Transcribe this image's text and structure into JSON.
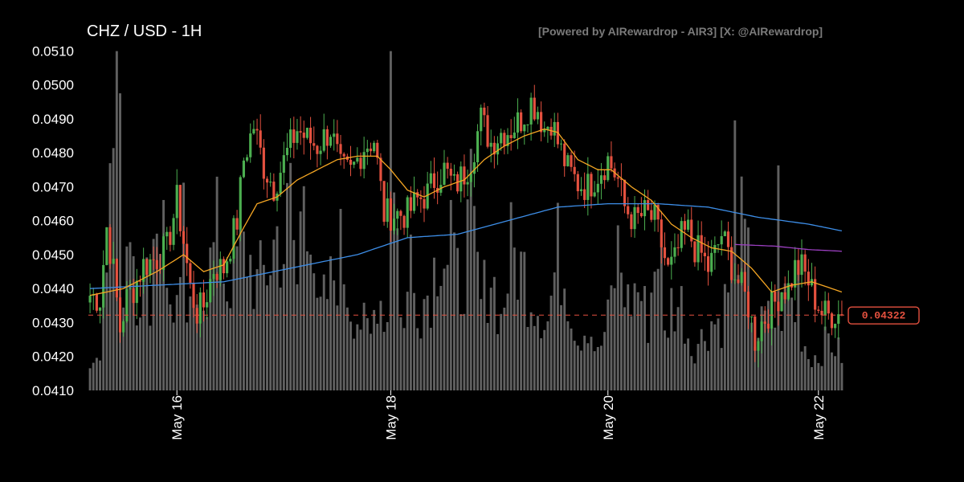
{
  "header": {
    "title": "CHZ / USD - 1H",
    "credit": "[Powered by AIRewardrop - AIR3] [X: @AIRewardrop]"
  },
  "colors": {
    "background": "#000000",
    "up": "#4caf50",
    "down": "#e4513f",
    "volume": "#808080",
    "ma_fast": "#f5a623",
    "ma_slow": "#3d8ee8",
    "ma_long": "#9b3fc0",
    "price_line": "#e4513f"
  },
  "chart_data": {
    "type": "candlestick",
    "interval": "1H",
    "ylim": [
      0.041,
      0.0512
    ],
    "y_ticks": [
      "0.0410",
      "0.0420",
      "0.0430",
      "0.0440",
      "0.0450",
      "0.0460",
      "0.0470",
      "0.0480",
      "0.0490",
      "0.0500",
      "0.0510"
    ],
    "x_ticks": [
      {
        "label": "May 16",
        "index": 26
      },
      {
        "label": "May 18",
        "index": 90
      },
      {
        "label": "May 20",
        "index": 155
      },
      {
        "label": "May 22",
        "index": 218
      }
    ],
    "last_price": 0.04322,
    "last_price_label": "0.04322",
    "price_anchors": [
      [
        0,
        0.0438
      ],
      [
        3,
        0.0437
      ],
      [
        5,
        0.0458
      ],
      [
        7,
        0.0445
      ],
      [
        9,
        0.0428
      ],
      [
        11,
        0.0437
      ],
      [
        13,
        0.044
      ],
      [
        16,
        0.0447
      ],
      [
        20,
        0.0449
      ],
      [
        23,
        0.0452
      ],
      [
        26,
        0.0466
      ],
      [
        28,
        0.0454
      ],
      [
        30,
        0.044
      ],
      [
        32,
        0.0433
      ],
      [
        34,
        0.0435
      ],
      [
        37,
        0.0446
      ],
      [
        40,
        0.0446
      ],
      [
        44,
        0.046
      ],
      [
        46,
        0.0478
      ],
      [
        49,
        0.0488
      ],
      [
        52,
        0.0476
      ],
      [
        55,
        0.047
      ],
      [
        59,
        0.048
      ],
      [
        62,
        0.0487
      ],
      [
        65,
        0.0484
      ],
      [
        68,
        0.0482
      ],
      [
        72,
        0.0487
      ],
      [
        75,
        0.0475
      ],
      [
        78,
        0.0474
      ],
      [
        82,
        0.0482
      ],
      [
        85,
        0.0484
      ],
      [
        88,
        0.0462
      ],
      [
        92,
        0.0462
      ],
      [
        95,
        0.0462
      ],
      [
        98,
        0.0466
      ],
      [
        101,
        0.0468
      ],
      [
        103,
        0.0472
      ],
      [
        106,
        0.0475
      ],
      [
        109,
        0.047
      ],
      [
        112,
        0.0474
      ],
      [
        114,
        0.0478
      ],
      [
        117,
        0.049
      ],
      [
        120,
        0.0483
      ],
      [
        123,
        0.0486
      ],
      [
        126,
        0.0487
      ],
      [
        129,
        0.049
      ],
      [
        132,
        0.0495
      ],
      [
        134,
        0.0493
      ],
      [
        136,
        0.0487
      ],
      [
        138,
        0.049
      ],
      [
        140,
        0.0483
      ],
      [
        143,
        0.0475
      ],
      [
        146,
        0.0471
      ],
      [
        149,
        0.047
      ],
      [
        152,
        0.0474
      ],
      [
        155,
        0.0478
      ],
      [
        158,
        0.0472
      ],
      [
        160,
        0.0464
      ],
      [
        163,
        0.046
      ],
      [
        166,
        0.0462
      ],
      [
        169,
        0.046
      ],
      [
        171,
        0.0453
      ],
      [
        173,
        0.0445
      ],
      [
        175,
        0.0448
      ],
      [
        177,
        0.0455
      ],
      [
        179,
        0.0457
      ],
      [
        181,
        0.0452
      ],
      [
        183,
        0.045
      ],
      [
        185,
        0.0446
      ],
      [
        187,
        0.045
      ],
      [
        189,
        0.0456
      ],
      [
        191,
        0.045
      ],
      [
        193,
        0.0444
      ],
      [
        195,
        0.044
      ],
      [
        197,
        0.0435
      ],
      [
        199,
        0.0425
      ],
      [
        201,
        0.043
      ],
      [
        203,
        0.0433
      ],
      [
        205,
        0.0436
      ],
      [
        207,
        0.044
      ],
      [
        209,
        0.044
      ],
      [
        211,
        0.0446
      ],
      [
        213,
        0.0446
      ],
      [
        215,
        0.0442
      ],
      [
        217,
        0.0437
      ],
      [
        219,
        0.0433
      ],
      [
        221,
        0.0432
      ],
      [
        223,
        0.0433
      ],
      [
        225,
        0.04322
      ]
    ],
    "volume_anchors": [
      [
        0,
        0.08
      ],
      [
        3,
        0.1
      ],
      [
        4,
        0.5
      ],
      [
        6,
        0.55
      ],
      [
        8,
        0.95
      ],
      [
        10,
        0.35
      ],
      [
        12,
        0.55
      ],
      [
        14,
        0.3
      ],
      [
        18,
        0.3
      ],
      [
        20,
        0.55
      ],
      [
        23,
        0.25
      ],
      [
        27,
        0.25
      ],
      [
        30,
        0.2
      ],
      [
        33,
        0.3
      ],
      [
        35,
        0.3
      ],
      [
        38,
        0.45
      ],
      [
        41,
        0.3
      ],
      [
        44,
        0.38
      ],
      [
        47,
        0.4
      ],
      [
        50,
        0.3
      ],
      [
        53,
        0.35
      ],
      [
        56,
        0.45
      ],
      [
        58,
        0.4
      ],
      [
        60,
        0.55
      ],
      [
        62,
        0.3
      ],
      [
        64,
        0.65
      ],
      [
        66,
        0.55
      ],
      [
        68,
        0.2
      ],
      [
        70,
        0.25
      ],
      [
        72,
        0.3
      ],
      [
        75,
        0.4
      ],
      [
        78,
        0.25
      ],
      [
        81,
        0.2
      ],
      [
        84,
        0.15
      ],
      [
        86,
        0.3
      ],
      [
        89,
        0.2
      ],
      [
        90,
        0.98
      ],
      [
        93,
        0.2
      ],
      [
        96,
        0.3
      ],
      [
        99,
        0.25
      ],
      [
        102,
        0.3
      ],
      [
        105,
        0.45
      ],
      [
        108,
        0.35
      ],
      [
        111,
        0.3
      ],
      [
        114,
        0.5
      ],
      [
        117,
        0.25
      ],
      [
        120,
        0.35
      ],
      [
        123,
        0.2
      ],
      [
        126,
        0.4
      ],
      [
        129,
        0.35
      ],
      [
        131,
        0.3
      ],
      [
        134,
        0.25
      ],
      [
        137,
        0.2
      ],
      [
        140,
        0.4
      ],
      [
        143,
        0.3
      ],
      [
        146,
        0.15
      ],
      [
        149,
        0.2
      ],
      [
        152,
        0.1
      ],
      [
        155,
        0.2
      ],
      [
        158,
        0.4
      ],
      [
        161,
        0.25
      ],
      [
        164,
        0.3
      ],
      [
        167,
        0.2
      ],
      [
        170,
        0.45
      ],
      [
        172,
        0.15
      ],
      [
        174,
        0.25
      ],
      [
        177,
        0.25
      ],
      [
        180,
        0.12
      ],
      [
        183,
        0.15
      ],
      [
        186,
        0.2
      ],
      [
        189,
        0.2
      ],
      [
        192,
        0.35
      ],
      [
        194,
        0.5
      ],
      [
        197,
        0.35
      ],
      [
        199,
        0.15
      ],
      [
        202,
        0.2
      ],
      [
        205,
        0.2
      ],
      [
        208,
        0.25
      ],
      [
        210,
        0.25
      ],
      [
        212,
        0.2
      ],
      [
        215,
        0.1
      ],
      [
        218,
        0.1
      ],
      [
        221,
        0.15
      ],
      [
        225,
        0.1
      ]
    ],
    "volume_spikes": [
      [
        7,
        0.7
      ],
      [
        22,
        0.55
      ],
      [
        28,
        0.6
      ],
      [
        90,
        0.98
      ],
      [
        96,
        0.45
      ],
      [
        108,
        0.55
      ],
      [
        130,
        0.4
      ],
      [
        171,
        0.45
      ],
      [
        193,
        0.78
      ],
      [
        206,
        0.65
      ],
      [
        212,
        0.35
      ]
    ],
    "ma_fast_anchors": [
      [
        0,
        0.0438
      ],
      [
        10,
        0.044
      ],
      [
        20,
        0.0445
      ],
      [
        28,
        0.045
      ],
      [
        34,
        0.0445
      ],
      [
        40,
        0.0447
      ],
      [
        46,
        0.0458
      ],
      [
        50,
        0.0465
      ],
      [
        56,
        0.0467
      ],
      [
        62,
        0.0472
      ],
      [
        68,
        0.0475
      ],
      [
        74,
        0.0478
      ],
      [
        80,
        0.0479
      ],
      [
        86,
        0.0479
      ],
      [
        90,
        0.0475
      ],
      [
        95,
        0.0469
      ],
      [
        100,
        0.0467
      ],
      [
        106,
        0.047
      ],
      [
        112,
        0.0472
      ],
      [
        118,
        0.0478
      ],
      [
        124,
        0.0482
      ],
      [
        130,
        0.0485
      ],
      [
        136,
        0.0487
      ],
      [
        140,
        0.0486
      ],
      [
        146,
        0.0478
      ],
      [
        152,
        0.0475
      ],
      [
        156,
        0.0475
      ],
      [
        162,
        0.047
      ],
      [
        168,
        0.0466
      ],
      [
        174,
        0.0459
      ],
      [
        180,
        0.0455
      ],
      [
        186,
        0.0452
      ],
      [
        192,
        0.0451
      ],
      [
        198,
        0.0446
      ],
      [
        204,
        0.0439
      ],
      [
        210,
        0.0441
      ],
      [
        216,
        0.0442
      ],
      [
        222,
        0.044
      ],
      [
        225,
        0.0439
      ]
    ],
    "ma_slow_anchors": [
      [
        0,
        0.044
      ],
      [
        20,
        0.0441
      ],
      [
        40,
        0.0442
      ],
      [
        60,
        0.0446
      ],
      [
        80,
        0.045
      ],
      [
        95,
        0.0455
      ],
      [
        110,
        0.0456
      ],
      [
        125,
        0.046
      ],
      [
        140,
        0.0464
      ],
      [
        155,
        0.0465
      ],
      [
        170,
        0.0465
      ],
      [
        185,
        0.0464
      ],
      [
        200,
        0.0461
      ],
      [
        215,
        0.0459
      ],
      [
        225,
        0.0457
      ]
    ],
    "ma_long_anchors": [
      [
        193,
        0.0453
      ],
      [
        205,
        0.04525
      ],
      [
        215,
        0.04515
      ],
      [
        225,
        0.0451
      ]
    ]
  }
}
